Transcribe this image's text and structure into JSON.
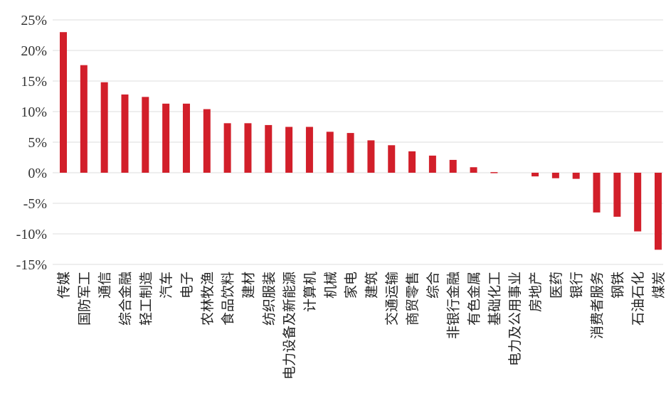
{
  "chart_data": {
    "type": "bar",
    "title": "",
    "xlabel": "",
    "ylabel": "",
    "ylim": [
      -15,
      25
    ],
    "ytick_values": [
      25,
      20,
      15,
      10,
      5,
      0,
      -5,
      -10,
      -15
    ],
    "ytick_labels": [
      "25%",
      "20%",
      "15%",
      "10%",
      "5%",
      "0%",
      "-5%",
      "-10%",
      "-15%"
    ],
    "grid": true,
    "bar_color": "#d21f2a",
    "categories": [
      "传媒",
      "国防军工",
      "通信",
      "综合金融",
      "轻工制造",
      "汽车",
      "电子",
      "农林牧渔",
      "食品饮料",
      "建材",
      "纺织服装",
      "电力设备及新能源",
      "计算机",
      "机械",
      "家电",
      "建筑",
      "交通运输",
      "商贸零售",
      "综合",
      "非银行金融",
      "有色金属",
      "基础化工",
      "电力及公用事业",
      "房地产",
      "医药",
      "银行",
      "消费者服务",
      "钢铁",
      "石油石化",
      "煤炭"
    ],
    "values": [
      23.0,
      17.6,
      14.8,
      12.8,
      12.4,
      11.3,
      11.3,
      10.4,
      8.1,
      8.1,
      7.8,
      7.5,
      7.5,
      6.7,
      6.5,
      5.3,
      4.5,
      3.5,
      2.8,
      2.1,
      0.9,
      0.1,
      0.0,
      -0.6,
      -0.9,
      -1.0,
      -6.5,
      -7.2,
      -9.6,
      -12.6
    ]
  }
}
